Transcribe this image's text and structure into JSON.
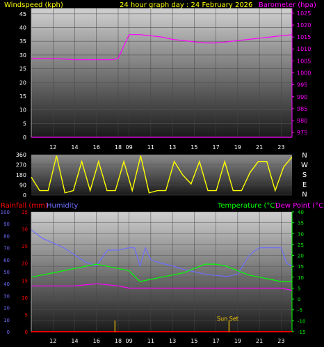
{
  "header": {
    "left_label": "Windspeed (kph)",
    "title": "24 hour graph day : 24 February 2026",
    "right_label": "Barometer (hpa)"
  },
  "colors": {
    "wind": "#ff00ff",
    "barometer": "#ff00ff",
    "wind_dir": "#ffff00",
    "rain": "#ff0000",
    "humidity": "#6e6eff",
    "temperature": "#00ff00",
    "dewpoint": "#ff00ff",
    "sun": "#ffcc00",
    "header": "#ffff00"
  },
  "x_axis_labels": [
    "12",
    "14",
    "16",
    "18",
    "09",
    "11",
    "13",
    "15",
    "17",
    "19",
    "21",
    "23"
  ],
  "top_panel": {
    "left_axis": {
      "ticks": [
        "0",
        "5",
        "10",
        "15",
        "20",
        "25",
        "30",
        "35",
        "40",
        "45"
      ],
      "min": 0,
      "max": 47
    },
    "right_axis": {
      "ticks": [
        "975",
        "980",
        "985",
        "990",
        "995",
        "1000",
        "1005",
        "1010",
        "1015",
        "1020",
        "1025"
      ],
      "min": 973,
      "max": 1027
    }
  },
  "wind_dir_panel": {
    "left_ticks": [
      "0",
      "90",
      "180",
      "270",
      "360"
    ],
    "compass_letters": [
      "N",
      "W",
      "S",
      "E",
      "N"
    ]
  },
  "bottom_panel": {
    "rain_label": "Rainfall (mm)",
    "humidity_label": "Humidity",
    "temperature_label": "Temperature (°C)",
    "dewpoint_label": "Dew Point (°C)",
    "humidity_ticks": [
      "0",
      "10",
      "20",
      "30",
      "40",
      "50",
      "60",
      "70",
      "80",
      "90",
      "100"
    ],
    "rain_ticks": [
      "0",
      "5",
      "10",
      "15",
      "20",
      "25",
      "30",
      "35"
    ],
    "temp_ticks": [
      "-15",
      "-10",
      "-5",
      "0",
      "5",
      "10",
      "15",
      "20",
      "25",
      "30",
      "35",
      "40"
    ],
    "sunset_label": "Sun Set"
  },
  "chart_data": {
    "type": "line",
    "title": "24 hour graph day : 24 February 2026",
    "x_hours_labeled": [
      "12",
      "14",
      "16",
      "18",
      "09",
      "11",
      "13",
      "15",
      "17",
      "19",
      "21",
      "23"
    ],
    "series": [
      {
        "name": "Barometer (hpa)",
        "x": [
          10,
          12,
          14,
          16,
          17.5,
          18,
          19,
          20,
          21,
          22,
          23,
          24,
          25,
          26,
          27,
          28,
          29,
          30,
          31,
          32,
          33,
          34
        ],
        "values": [
          1006,
          1006,
          1005.5,
          1005.5,
          1005.5,
          1006,
          1016,
          1016,
          1015.5,
          1015,
          1014,
          1013.5,
          1013,
          1012.5,
          1012.5,
          1013,
          1013.5,
          1014,
          1014.5,
          1015,
          1015.5,
          1016
        ]
      },
      {
        "name": "Windspeed (kph)",
        "x": [
          10,
          34
        ],
        "values": [
          0,
          0
        ]
      },
      {
        "name": "Humidity",
        "x": [
          10,
          11,
          12,
          13,
          14,
          15,
          16,
          17,
          18,
          19,
          19.5,
          20,
          20.5,
          21,
          22,
          23,
          24,
          25,
          26,
          27,
          28,
          29,
          30,
          30.5,
          31,
          32,
          33,
          33.5,
          34
        ],
        "values": [
          85,
          78,
          74,
          70,
          64,
          58,
          55,
          68,
          68,
          70,
          70,
          55,
          70,
          60,
          57,
          55,
          52,
          50,
          48,
          47,
          46,
          48,
          63,
          67,
          70,
          70,
          70,
          57,
          55
        ]
      },
      {
        "name": "Temperature (°C)",
        "x": [
          10,
          11,
          12,
          13,
          14,
          15,
          16,
          17,
          18,
          19,
          20,
          21,
          22,
          23,
          24,
          25,
          26,
          27,
          28,
          29,
          30,
          31,
          32,
          33,
          34
        ],
        "values": [
          10,
          11,
          12,
          13,
          14,
          15,
          16,
          15,
          14,
          13,
          8,
          9,
          10,
          11,
          12,
          14,
          16,
          16,
          15,
          13,
          11,
          10,
          9,
          8,
          8
        ]
      },
      {
        "name": "Dew Point (°C)",
        "x": [
          10,
          12,
          14,
          16,
          18,
          19,
          20,
          21,
          22,
          23,
          24,
          25,
          26,
          27,
          28,
          29,
          30,
          31,
          32,
          33,
          34
        ],
        "values": [
          6,
          6,
          6,
          7,
          6,
          5,
          5,
          5,
          5,
          5,
          5,
          5,
          5,
          5,
          5,
          5,
          5,
          5,
          5,
          5,
          4
        ]
      },
      {
        "name": "Rainfall (mm)",
        "x": [
          10,
          34
        ],
        "values": [
          0,
          0
        ]
      }
    ],
    "wind_direction_deg": [
      160,
      40,
      40,
      350,
      20,
      40,
      300,
      40,
      300,
      40,
      40,
      300,
      40,
      350,
      20,
      40,
      40,
      300,
      180,
      100,
      300,
      40,
      40,
      300,
      40,
      40,
      200,
      300,
      300,
      40,
      250,
      340
    ],
    "y_ranges": {
      "windspeed": [
        0,
        47
      ],
      "barometer": [
        975,
        1025
      ],
      "wind_direction": [
        0,
        360
      ],
      "humidity": [
        0,
        100
      ],
      "rainfall": [
        0,
        35
      ],
      "temperature": [
        -15,
        40
      ]
    },
    "annotations": [
      "Sun Set"
    ]
  }
}
